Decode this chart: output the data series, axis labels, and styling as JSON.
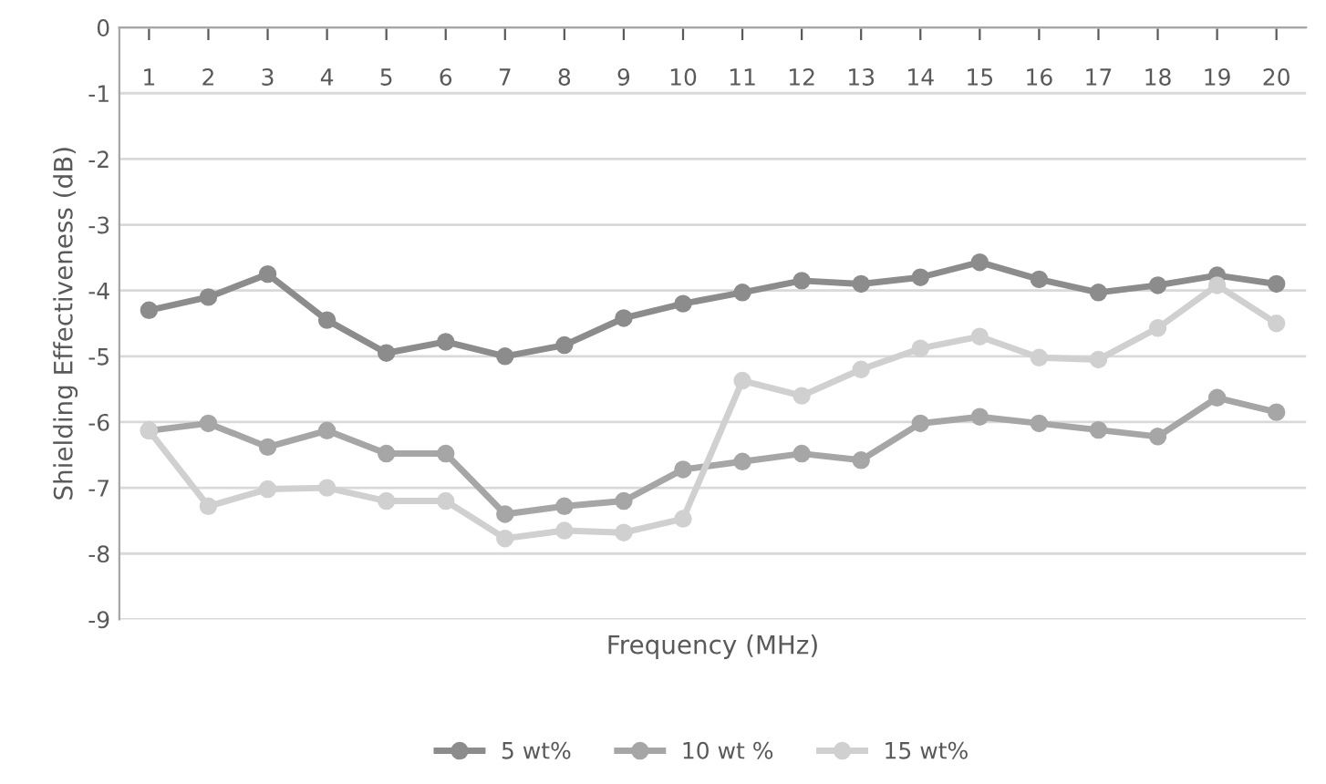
{
  "chart_data": {
    "type": "line",
    "xlabel": "Frequency (MHz)",
    "ylabel": "Shielding Effectiveness (dB)",
    "categories": [
      "1",
      "2",
      "3",
      "4",
      "5",
      "6",
      "7",
      "8",
      "9",
      "10",
      "11",
      "12",
      "13",
      "14",
      "15",
      "16",
      "17",
      "18",
      "19",
      "20"
    ],
    "ylim": [
      -9,
      0
    ],
    "yticks": [
      -9,
      -8,
      -7,
      -6,
      -5,
      -4,
      -3,
      -2,
      -1,
      0
    ],
    "grid": "y",
    "legend": "bottom",
    "marker": "circle",
    "line_style": "solid",
    "series": [
      {
        "name": "5 wt%",
        "color": "#8c8c8c",
        "values": [
          -4.3,
          -4.1,
          -3.75,
          -4.45,
          -4.95,
          -4.78,
          -5.0,
          -4.83,
          -4.42,
          -4.2,
          -4.03,
          -3.85,
          -3.9,
          -3.8,
          -3.57,
          -3.83,
          -4.03,
          -3.92,
          -3.77,
          -3.9
        ]
      },
      {
        "name": "10 wt %",
        "color": "#a6a6a6",
        "values": [
          -6.13,
          -6.02,
          -6.38,
          -6.13,
          -6.48,
          -6.48,
          -7.4,
          -7.28,
          -7.2,
          -6.72,
          -6.6,
          -6.48,
          -6.58,
          -6.02,
          -5.92,
          -6.02,
          -6.12,
          -6.22,
          -5.63,
          -5.85
        ]
      },
      {
        "name": "15 wt%",
        "color": "#d0d0d0",
        "values": [
          -6.13,
          -7.28,
          -7.02,
          -7.0,
          -7.2,
          -7.2,
          -7.77,
          -7.65,
          -7.68,
          -7.47,
          -5.37,
          -5.6,
          -5.2,
          -4.88,
          -4.7,
          -5.02,
          -5.05,
          -4.57,
          -3.92,
          -4.5
        ]
      }
    ]
  }
}
